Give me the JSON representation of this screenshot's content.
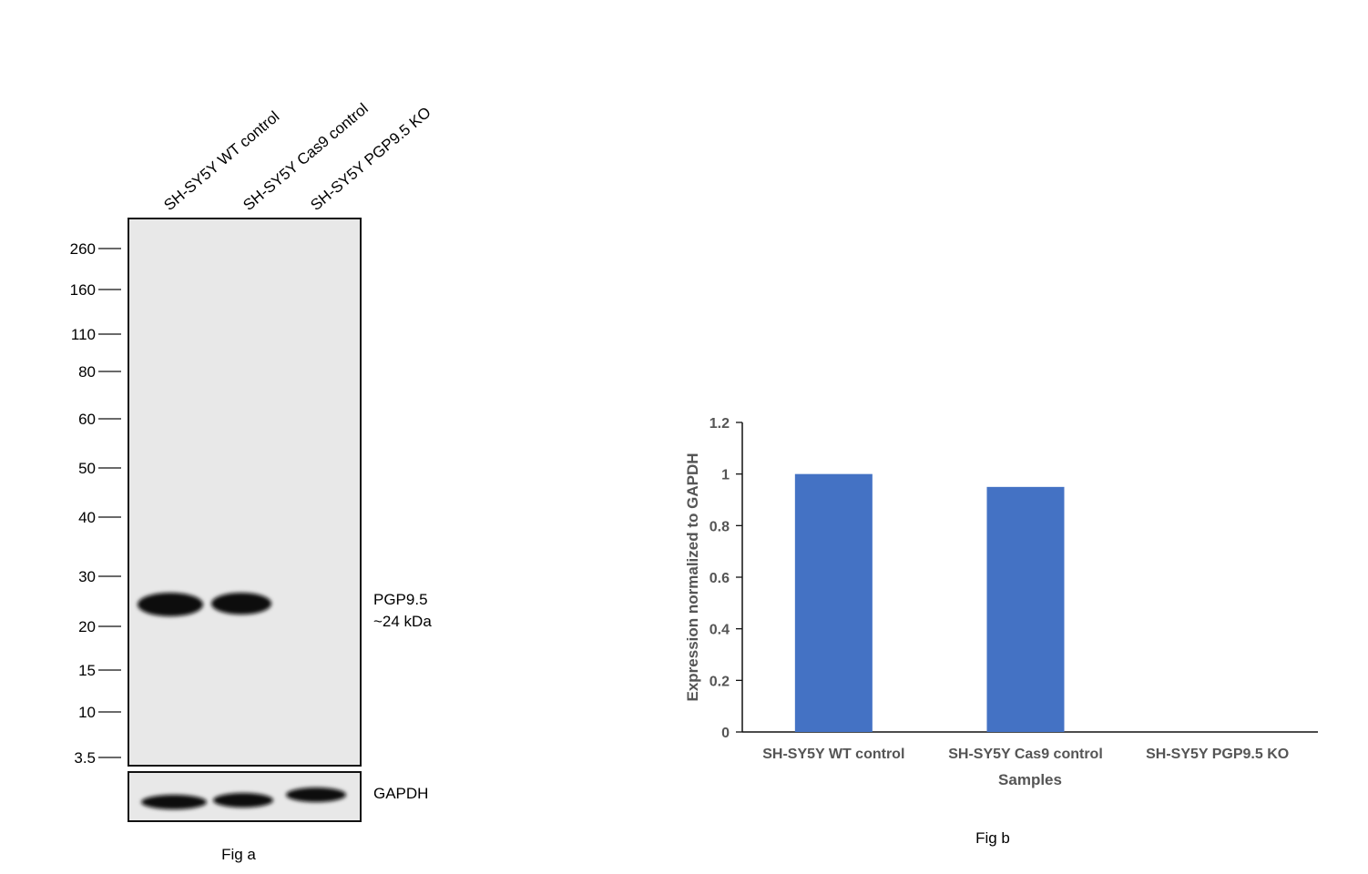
{
  "fig_a": {
    "caption": "Fig a",
    "lanes": [
      "SH-SY5Y WT control",
      "SH-SY5Y Cas9 control",
      "SH-SY5Y PGP9.5 KO"
    ],
    "markers": [
      "260",
      "160",
      "110",
      "80",
      "60",
      "50",
      "40",
      "30",
      "20",
      "15",
      "10",
      "3.5"
    ],
    "band_labels": {
      "target_name": "PGP9.5",
      "target_size": "~24 kDa",
      "loading_control": "GAPDH"
    }
  },
  "chart_data": {
    "type": "bar",
    "title": "",
    "caption": "Fig b",
    "categories": [
      "SH-SY5Y WT control",
      "SH-SY5Y Cas9 control",
      "SH-SY5Y PGP9.5 KO"
    ],
    "values": [
      1.0,
      0.95,
      0.0
    ],
    "xlabel": "Samples",
    "ylabel": "Expression normalized to GAPDH",
    "ylim": [
      0,
      1.2
    ],
    "yticks": [
      "0",
      "0.2",
      "0.4",
      "0.6",
      "0.8",
      "1",
      "1.2"
    ],
    "bar_color": "#4472C4",
    "grid": false,
    "legend": "none"
  }
}
